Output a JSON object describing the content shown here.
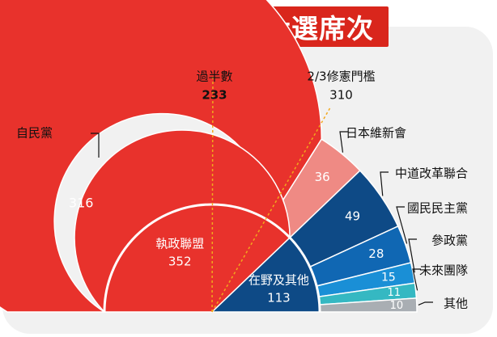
{
  "chart_data": {
    "type": "semicircle-donut",
    "title": "日本衆議院大選席次",
    "total_label": "",
    "outer_ring": {
      "series": [
        {
          "name": "自民黨",
          "value": 316,
          "color": "#e8322c"
        },
        {
          "name": "日本維新會",
          "value": 36,
          "color": "#ef8a84"
        },
        {
          "name": "中道改革聯合",
          "value": 49,
          "color": "#0e4a86"
        },
        {
          "name": "國民民主黨",
          "value": 28,
          "color": "#1067b3"
        },
        {
          "name": "參政黨",
          "value": 15,
          "color": "#1a8fd6"
        },
        {
          "name": "未來團隊",
          "value": 11,
          "color": "#35b8c2"
        },
        {
          "name": "其他",
          "value": 10,
          "color": "#a9aeb3"
        }
      ]
    },
    "inner_ring": {
      "series": [
        {
          "name": "執政聯盟",
          "value": 352,
          "color": "#e8322c"
        },
        {
          "name": "在野及其他",
          "value": 113,
          "color": "#0e4a86"
        }
      ]
    },
    "thresholds": [
      {
        "label": "過半數",
        "value": 233
      },
      {
        "label": "2/3修憲門檻",
        "value": 310
      }
    ]
  }
}
